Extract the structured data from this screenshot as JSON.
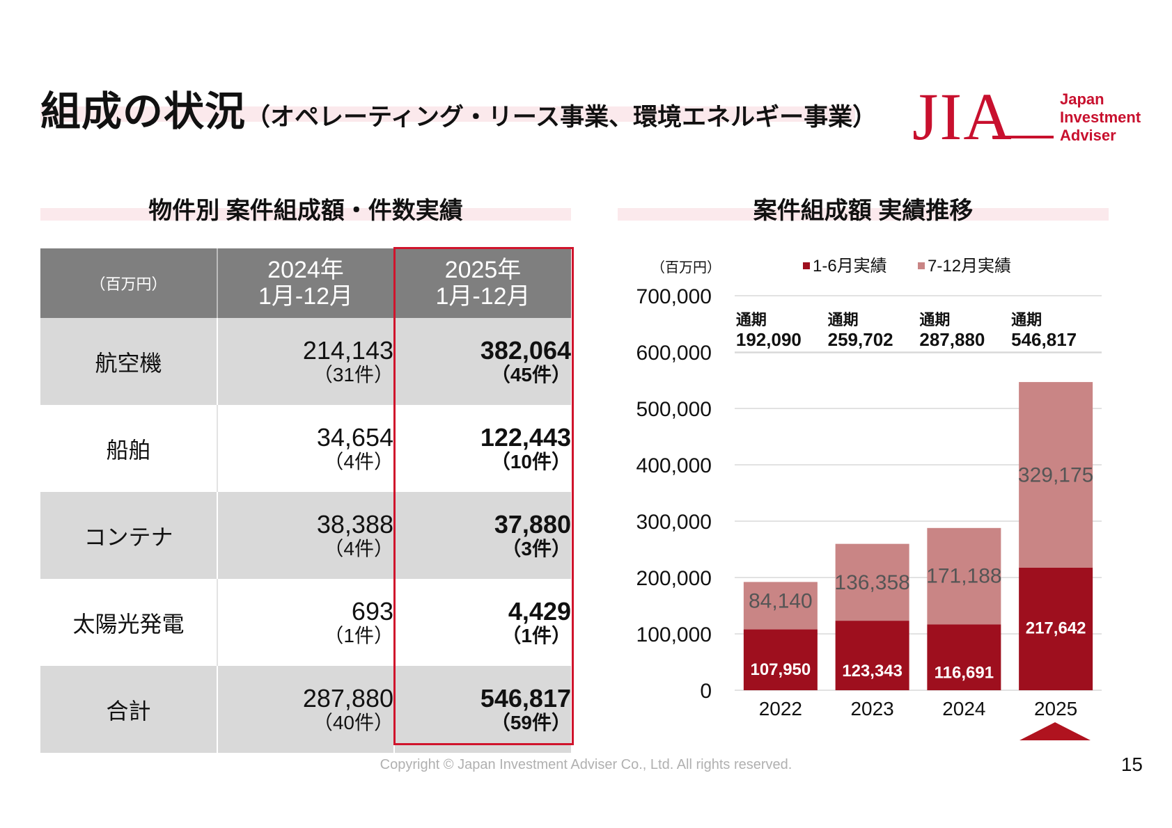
{
  "title": {
    "main": "組成の状況",
    "sub": "（オペレーティング・リース事業、環境エネルギー事業）"
  },
  "logo": {
    "mark": "JIA",
    "line1": "Japan",
    "line2": "Investment",
    "line3": "Adviser"
  },
  "table_section": {
    "title": "物件別 案件組成額・件数実績",
    "unit": "（百万円）",
    "columns": [
      {
        "year": "2024年",
        "period": "1月-12月"
      },
      {
        "year": "2025年",
        "period": "1月-12月"
      }
    ],
    "rows": [
      {
        "category": "航空機",
        "v2024": "214,143",
        "c2024": "（31件）",
        "v2025": "382,064",
        "c2025": "（45件）"
      },
      {
        "category": "船舶",
        "v2024": "34,654",
        "c2024": "（4件）",
        "v2025": "122,443",
        "c2025": "（10件）"
      },
      {
        "category": "コンテナ",
        "v2024": "38,388",
        "c2024": "（4件）",
        "v2025": "37,880",
        "c2025": "（3件）"
      },
      {
        "category": "太陽光発電",
        "v2024": "693",
        "c2024": "（1件）",
        "v2025": "4,429",
        "c2025": "（1件）"
      },
      {
        "category": "合計",
        "v2024": "287,880",
        "c2024": "（40件）",
        "v2025": "546,817",
        "c2025": "（59件）"
      }
    ],
    "highlight_color": "#d0142c"
  },
  "chart_section": {
    "title": "案件組成額 実績推移"
  },
  "chart_data": {
    "type": "bar",
    "stacked": true,
    "unit_label": "（百万円）",
    "categories": [
      "2022",
      "2023",
      "2024",
      "2025"
    ],
    "series": [
      {
        "name": "1-6月実績",
        "values": [
          107950,
          123343,
          116691,
          217642
        ],
        "labels": [
          "107,950",
          "123,343",
          "116,691",
          "217,642"
        ],
        "color": "#9e0f1e"
      },
      {
        "name": "7-12月実績",
        "values": [
          84140,
          136358,
          171188,
          329175
        ],
        "labels": [
          "84,140",
          "136,358",
          "171,188",
          "329,175"
        ],
        "color": "#c98585"
      }
    ],
    "totals_prefix": "通期",
    "totals": [
      "192,090",
      "259,702",
      "287,880",
      "546,817"
    ],
    "ylim": [
      0,
      700000
    ],
    "yticks": [
      "0",
      "100,000",
      "200,000",
      "300,000",
      "400,000",
      "500,000",
      "600,000",
      "700,000"
    ],
    "grid": true,
    "legend_position": "top"
  },
  "footer": {
    "copyright": "Copyright © Japan Investment Adviser Co., Ltd. All rights reserved.",
    "page": "15"
  }
}
